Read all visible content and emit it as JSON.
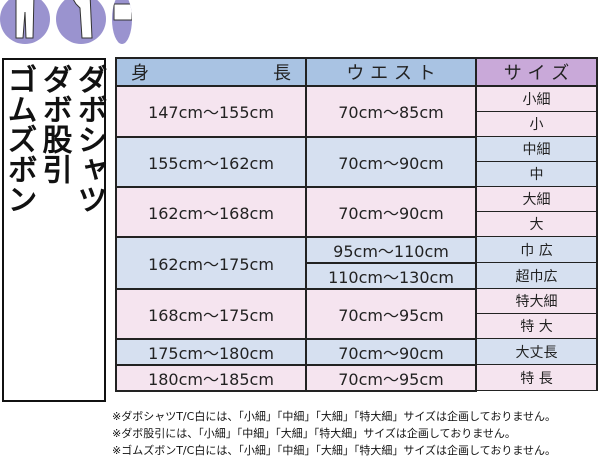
{
  "title_columns": [
    "ダボシャツ",
    "ダボ股引",
    "ゴムズボン"
  ],
  "header": {
    "height_label": [
      "身",
      "長"
    ],
    "waist_label": "ウ エ ス ト",
    "size_label": "サ イ ズ"
  },
  "groups": [
    {
      "height": "147cm〜155cm",
      "waists": [
        "70cm〜85cm"
      ],
      "sizes": [
        "小細",
        "小"
      ],
      "tone": "pink"
    },
    {
      "height": "155cm〜162cm",
      "waists": [
        "70cm〜90cm"
      ],
      "sizes": [
        "中細",
        "中"
      ],
      "tone": "blue"
    },
    {
      "height": "162cm〜168cm",
      "waists": [
        "70cm〜90cm"
      ],
      "sizes": [
        "大細",
        "大"
      ],
      "tone": "pink"
    },
    {
      "height": "162cm〜175cm",
      "waists": [
        "95cm〜110cm",
        "110cm〜130cm"
      ],
      "sizes": [
        "巾 広",
        "超巾広"
      ],
      "tone": "blue"
    },
    {
      "height": "168cm〜175cm",
      "waists": [
        "70cm〜95cm"
      ],
      "sizes": [
        "特大細",
        "特 大"
      ],
      "tone": "pink"
    },
    {
      "height": "175cm〜180cm",
      "waists": [
        "70cm〜90cm"
      ],
      "sizes": [
        "大丈長"
      ],
      "tone": "blue"
    },
    {
      "height": "180cm〜185cm",
      "waists": [
        "70cm〜95cm"
      ],
      "sizes": [
        "特 長"
      ],
      "tone": "pink"
    }
  ],
  "notes": [
    "※ダボシャツT/C白には、「小細」「中細」「大細」「特大細」サイズは企画しておりません。",
    "※ダボ股引には、「小細」「中細」「大細」「特大細」サイズは企画しておりません。",
    "※ゴムズボンT/C白には、「小細」「中細」「大細」「特大細」サイズは企画しておりません。"
  ],
  "colors": {
    "header_blue": "#a9c3e3",
    "header_purple": "#c9a9d9",
    "row_pink": "#f5e4ef",
    "row_blue": "#d6e0f0",
    "icon_circle": "#9a93cf"
  }
}
